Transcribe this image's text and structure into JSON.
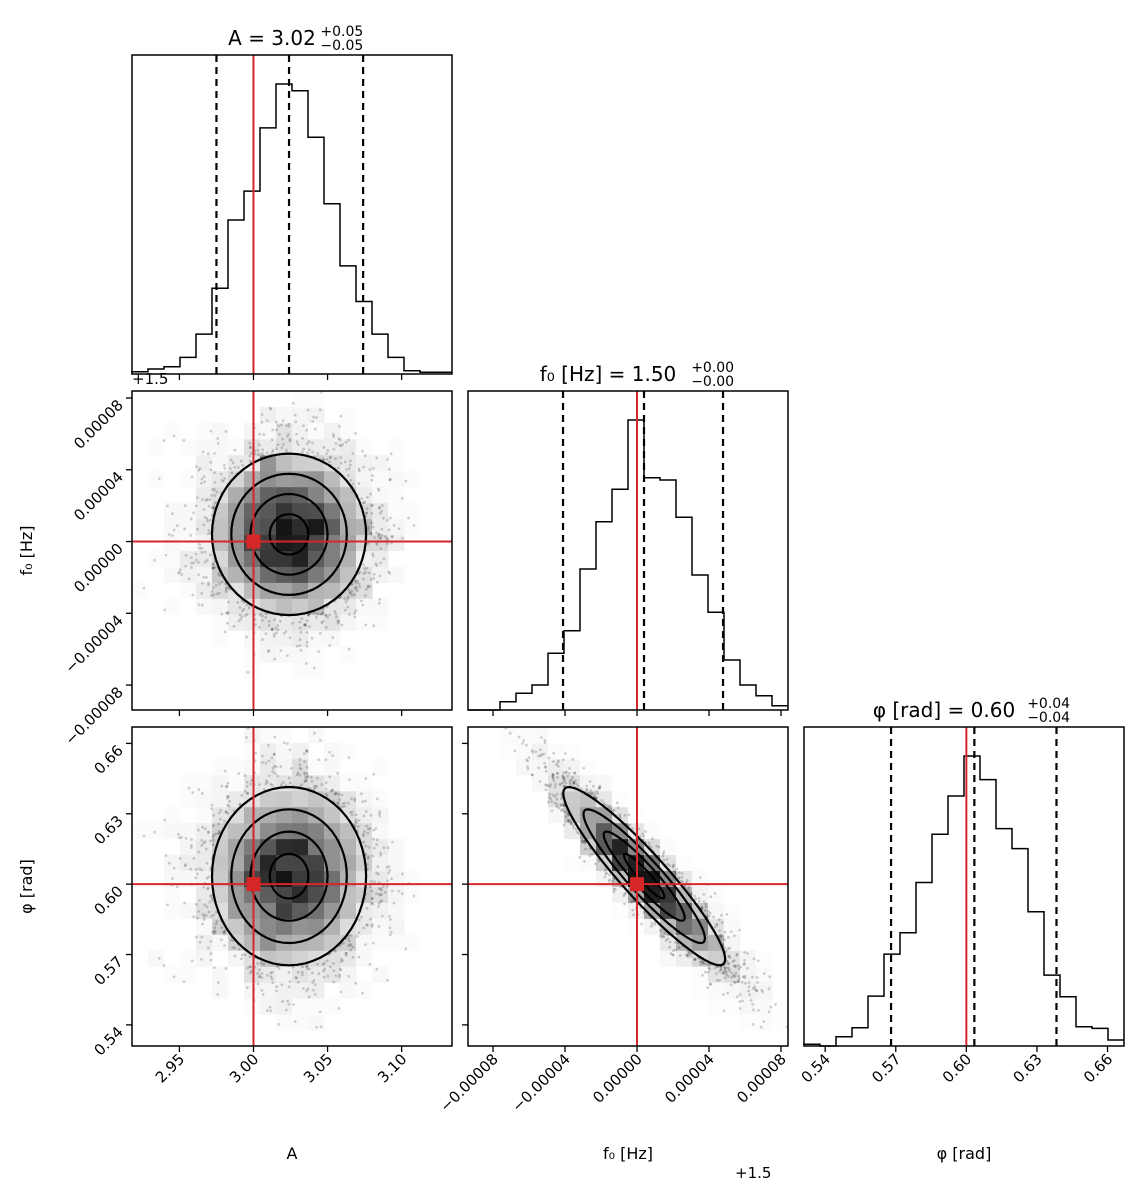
{
  "chart_data": {
    "type": "corner",
    "colors": {
      "truth": "#d62728",
      "hist": "#000000",
      "quantile": "#000000",
      "density": "#000000"
    },
    "grid": false,
    "parameters": [
      {
        "key": "A",
        "axis_label": "A",
        "title": {
          "main": "A = 3.02",
          "plus": "+0.05",
          "minus": "−0.05"
        },
        "range": [
          2.918,
          3.134
        ],
        "ticks": [
          2.95,
          3.0,
          3.05,
          3.1
        ],
        "tick_labels": [
          "2.95",
          "3.00",
          "3.05",
          "3.10"
        ],
        "offset_label": "",
        "truth": 3.0,
        "quantiles": [
          2.975,
          3.024,
          3.074
        ],
        "hist_relative_counts": [
          7,
          15,
          22,
          50,
          120,
          258,
          463,
          550,
          740,
          872,
          852,
          712,
          512,
          325,
          218,
          120,
          50,
          10,
          5,
          5
        ]
      },
      {
        "key": "f0",
        "axis_label": "f₀ [Hz]",
        "title": {
          "main": "f₀ [Hz] = 1.50",
          "plus": "+0.00",
          "minus": "−0.00"
        },
        "range": [
          -9.39e-05,
          8.39e-05
        ],
        "ticks": [
          -8e-05,
          -4e-05,
          0.0,
          4e-05,
          8e-05
        ],
        "tick_labels": [
          "−0.00008",
          "−0.00004",
          "0.00000",
          "0.00004",
          "0.00008"
        ],
        "offset_label": "+1.5",
        "truth": 0.0,
        "quantiles": [
          -4.11e-05,
          3.9e-06,
          4.78e-05
        ],
        "hist_relative_counts": [
          0,
          0,
          25,
          50,
          75,
          170,
          238,
          423,
          565,
          662,
          870,
          697,
          690,
          578,
          405,
          293,
          150,
          75,
          43,
          13
        ]
      },
      {
        "key": "phi",
        "axis_label": "φ [rad]",
        "title": {
          "main": "φ [rad] = 0.60",
          "plus": "+0.04",
          "minus": "−0.04"
        },
        "range": [
          0.531,
          0.667
        ],
        "ticks": [
          0.54,
          0.57,
          0.6,
          0.63,
          0.66
        ],
        "tick_labels": [
          "0.54",
          "0.57",
          "0.60",
          "0.63",
          "0.66"
        ],
        "offset_label": "",
        "truth": 0.6,
        "quantiles": [
          0.568,
          0.6034,
          0.6383
        ],
        "hist_relative_counts": [
          5,
          0,
          28,
          55,
          150,
          276,
          340,
          491,
          636,
          751,
          871,
          800,
          653,
          593,
          403,
          213,
          148,
          58,
          53,
          18
        ]
      }
    ],
    "posterior": {
      "mean": {
        "A": 3.024,
        "f0": 4e-06,
        "phi": 0.6034
      },
      "sigma": {
        "A": 0.026,
        "f0": 2.25e-05,
        "phi": 0.019
      },
      "correlation": {
        "A_f0": 0.0,
        "A_phi": 0.0,
        "f0_phi": -0.93
      }
    },
    "contour_sigma_levels": [
      0.5,
      1.0,
      1.5,
      2.0
    ]
  }
}
